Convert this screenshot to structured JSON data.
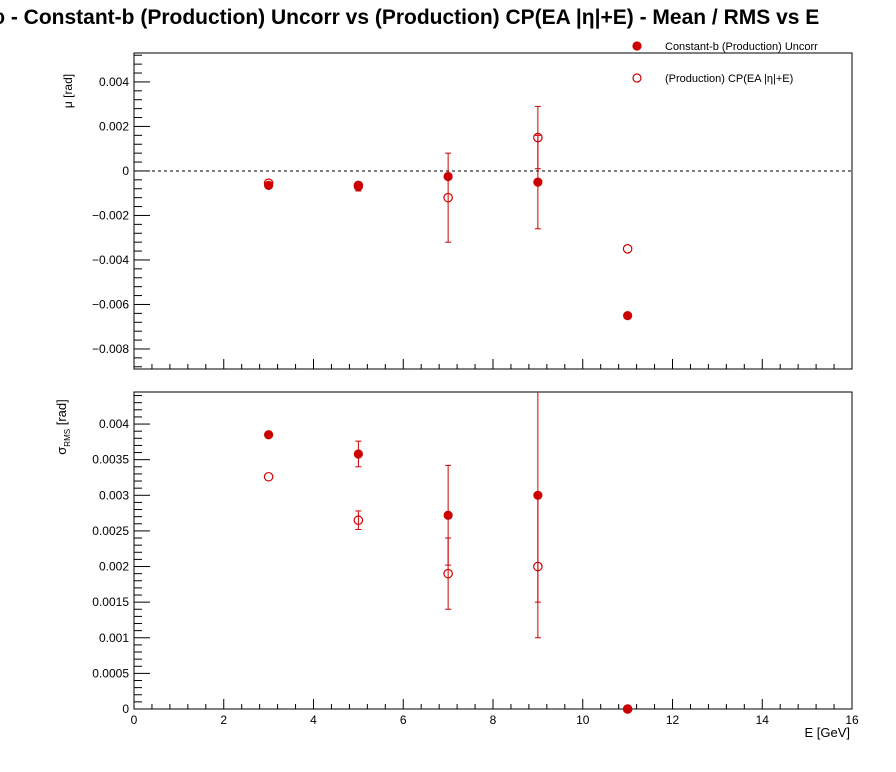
{
  "title": "φ  -  Constant-b (Production) Uncorr vs (Production) CP(EA |η|+E)  -  Mean / RMS vs E",
  "legend": [
    {
      "label": "Constant-b (Production) Uncorr",
      "marker": "filled"
    },
    {
      "label": "(Production) CP(EA |η|+E)",
      "marker": "open"
    }
  ],
  "colors": {
    "series": "#cc0000",
    "axis": "#000000"
  },
  "chart_data": [
    {
      "type": "scatter",
      "panel": "top",
      "ylabel": "μ  [rad]",
      "xlim": [
        0,
        16
      ],
      "ylim": [
        -0.0089,
        0.0053
      ],
      "yticks": [
        -0.008,
        -0.006,
        -0.004,
        -0.002,
        0,
        0.002,
        0.004
      ],
      "ytick_labels": [
        "−0.008",
        "−0.006",
        "−0.004",
        "−0.002",
        "0",
        "0.002",
        "0.004"
      ],
      "reference_line": 0,
      "series": [
        {
          "name": "Constant-b (Production) Uncorr",
          "marker": "filled",
          "points": [
            {
              "x": 3,
              "y": -0.00065,
              "err": 5e-05
            },
            {
              "x": 5,
              "y": -0.0007,
              "err": 0.0002
            },
            {
              "x": 7,
              "y": -0.00025,
              "err": 8e-05
            },
            {
              "x": 9,
              "y": -0.0005,
              "err": 0.0021
            },
            {
              "x": 11,
              "y": -0.0065,
              "err": 0
            }
          ]
        },
        {
          "name": "(Production) CP(EA |η|+E)",
          "marker": "open",
          "points": [
            {
              "x": 3,
              "y": -0.00055,
              "err": 5e-05
            },
            {
              "x": 5,
              "y": -0.00065,
              "err": 0.0001
            },
            {
              "x": 7,
              "y": -0.0012,
              "err": 0.002
            },
            {
              "x": 9,
              "y": 0.0015,
              "err": 0.0014
            },
            {
              "x": 11,
              "y": -0.0035,
              "err": 0
            }
          ]
        }
      ]
    },
    {
      "type": "scatter",
      "panel": "bottom",
      "ylabel_main": "σ",
      "ylabel_sub": "RMS",
      "ylabel_unit": "[rad]",
      "xlabel": "E  [GeV]",
      "xlim": [
        0,
        16
      ],
      "ylim": [
        0,
        0.00445
      ],
      "xticks": [
        0,
        2,
        4,
        6,
        8,
        10,
        12,
        14,
        16
      ],
      "xtick_labels": [
        "0",
        "2",
        "4",
        "6",
        "8",
        "10",
        "12",
        "14",
        "16"
      ],
      "yticks": [
        0,
        0.0005,
        0.001,
        0.0015,
        0.002,
        0.0025,
        0.003,
        0.0035,
        0.004
      ],
      "ytick_labels": [
        "0",
        "0.0005",
        "0.001",
        "0.0015",
        "0.002",
        "0.0025",
        "0.003",
        "0.0035",
        "0.004"
      ],
      "series": [
        {
          "name": "Constant-b (Production) Uncorr",
          "marker": "filled",
          "points": [
            {
              "x": 3,
              "y": 0.00385,
              "err": 3e-05
            },
            {
              "x": 5,
              "y": 0.00358,
              "err": 0.00018
            },
            {
              "x": 7,
              "y": 0.00272,
              "err": 0.0007
            },
            {
              "x": 9,
              "y": 0.003,
              "err": 0.0015
            },
            {
              "x": 11,
              "y": 0,
              "err": 0
            }
          ]
        },
        {
          "name": "(Production) CP(EA |η|+E)",
          "marker": "open",
          "points": [
            {
              "x": 3,
              "y": 0.00326,
              "err": 0
            },
            {
              "x": 5,
              "y": 0.00265,
              "err": 0.00013
            },
            {
              "x": 7,
              "y": 0.0019,
              "err": 0.0005
            },
            {
              "x": 9,
              "y": 0.002,
              "err": 0.001
            },
            {
              "x": 11,
              "y": 0,
              "err": 0
            }
          ]
        }
      ]
    }
  ]
}
